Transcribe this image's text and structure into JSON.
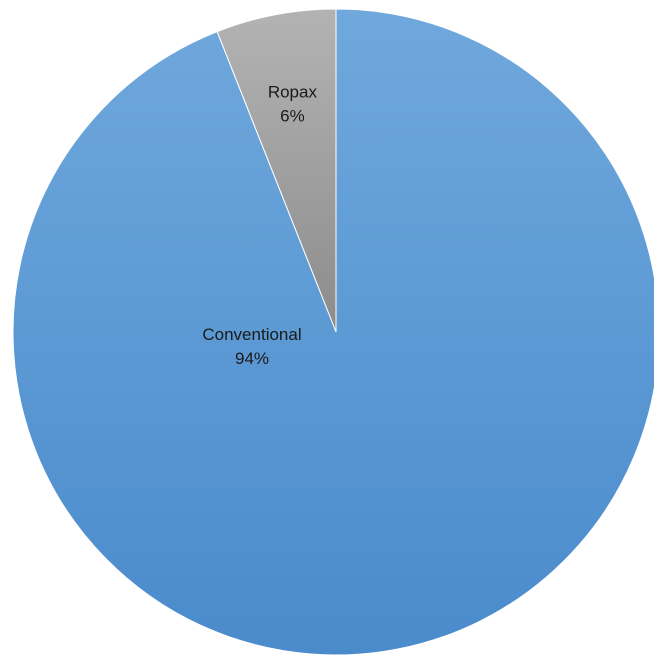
{
  "chart_data": {
    "type": "pie",
    "categories": [
      "Ropax",
      "Conventional"
    ],
    "values": [
      6,
      94
    ],
    "labels": [
      {
        "name": "Ropax",
        "percent": "6%"
      },
      {
        "name": "Conventional",
        "percent": "94%"
      }
    ],
    "colors": [
      "#a6a6a6",
      "#5b9bd5"
    ],
    "start_angle_deg": 0,
    "direction": "counterclockwise",
    "legend": "none"
  }
}
